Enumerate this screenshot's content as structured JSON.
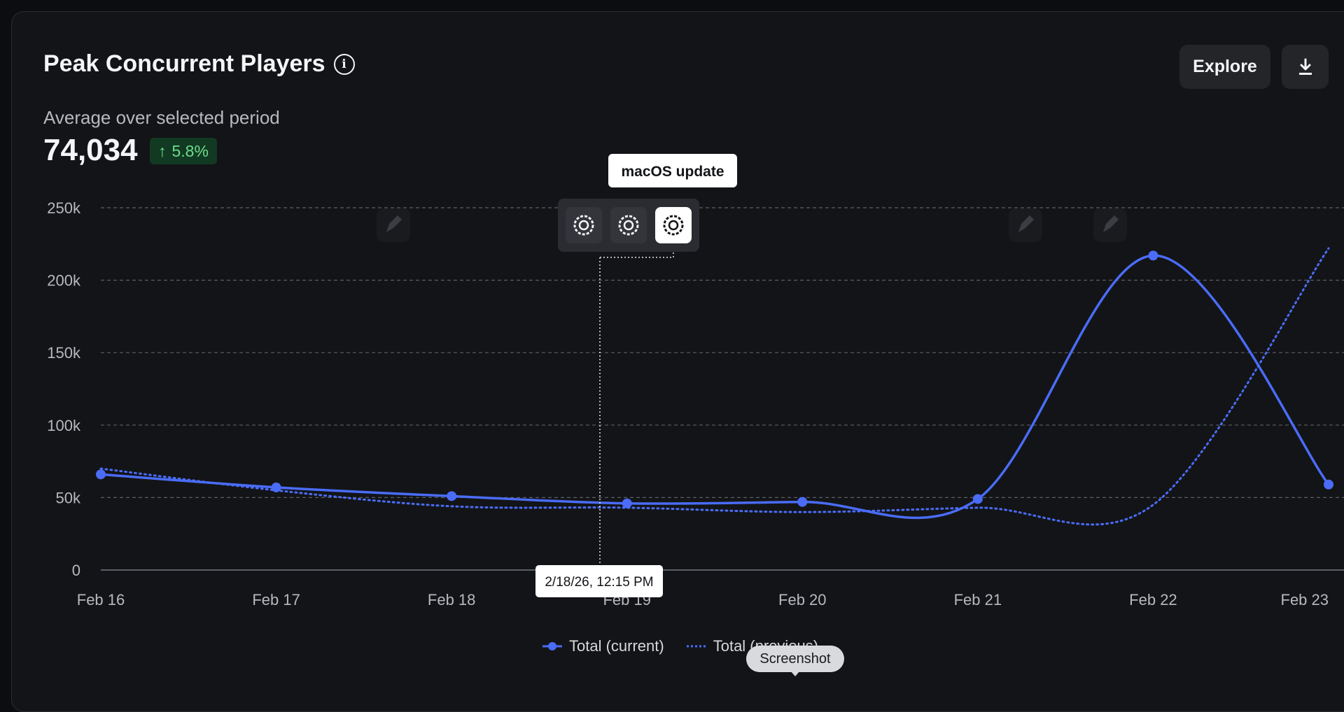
{
  "header": {
    "title": "Peak Concurrent Players",
    "info_icon": "info-icon",
    "subtitle": "Average over selected period",
    "average_value": "74,034",
    "change_badge": "5.8%",
    "change_direction": "up",
    "explore_label": "Explore",
    "download_icon": "download-icon"
  },
  "annotation": {
    "label": "macOS update",
    "timestamp": "2/18/26, 12:15 PM",
    "event_icon": "gear-icon",
    "edit_icon": "pencil-icon"
  },
  "legend": {
    "current": "Total (current)",
    "previous": "Total (previous)"
  },
  "overlay": {
    "screenshot_tooltip": "Screenshot"
  },
  "colors": {
    "series": "#4a6cf7",
    "badge_bg": "#123a22",
    "badge_text": "#6fdc8c",
    "background": "#131417"
  },
  "chart_data": {
    "type": "line",
    "x": [
      "Feb 16",
      "Feb 17",
      "Feb 18",
      "Feb 19",
      "Feb 20",
      "Feb 21",
      "Feb 22",
      "Feb 23"
    ],
    "series": [
      {
        "name": "Total (current)",
        "style": "solid",
        "values": [
          66000,
          57000,
          51000,
          46000,
          47000,
          49000,
          217000,
          59000
        ]
      },
      {
        "name": "Total (previous)",
        "style": "dotted",
        "values": [
          70000,
          55000,
          44000,
          43000,
          40000,
          43000,
          45000,
          222000
        ]
      }
    ],
    "yticks": [
      "0",
      "50k",
      "100k",
      "150k",
      "200k",
      "250k"
    ],
    "ylim": [
      0,
      250000
    ],
    "grid": true,
    "legend_position": "bottom-center"
  }
}
